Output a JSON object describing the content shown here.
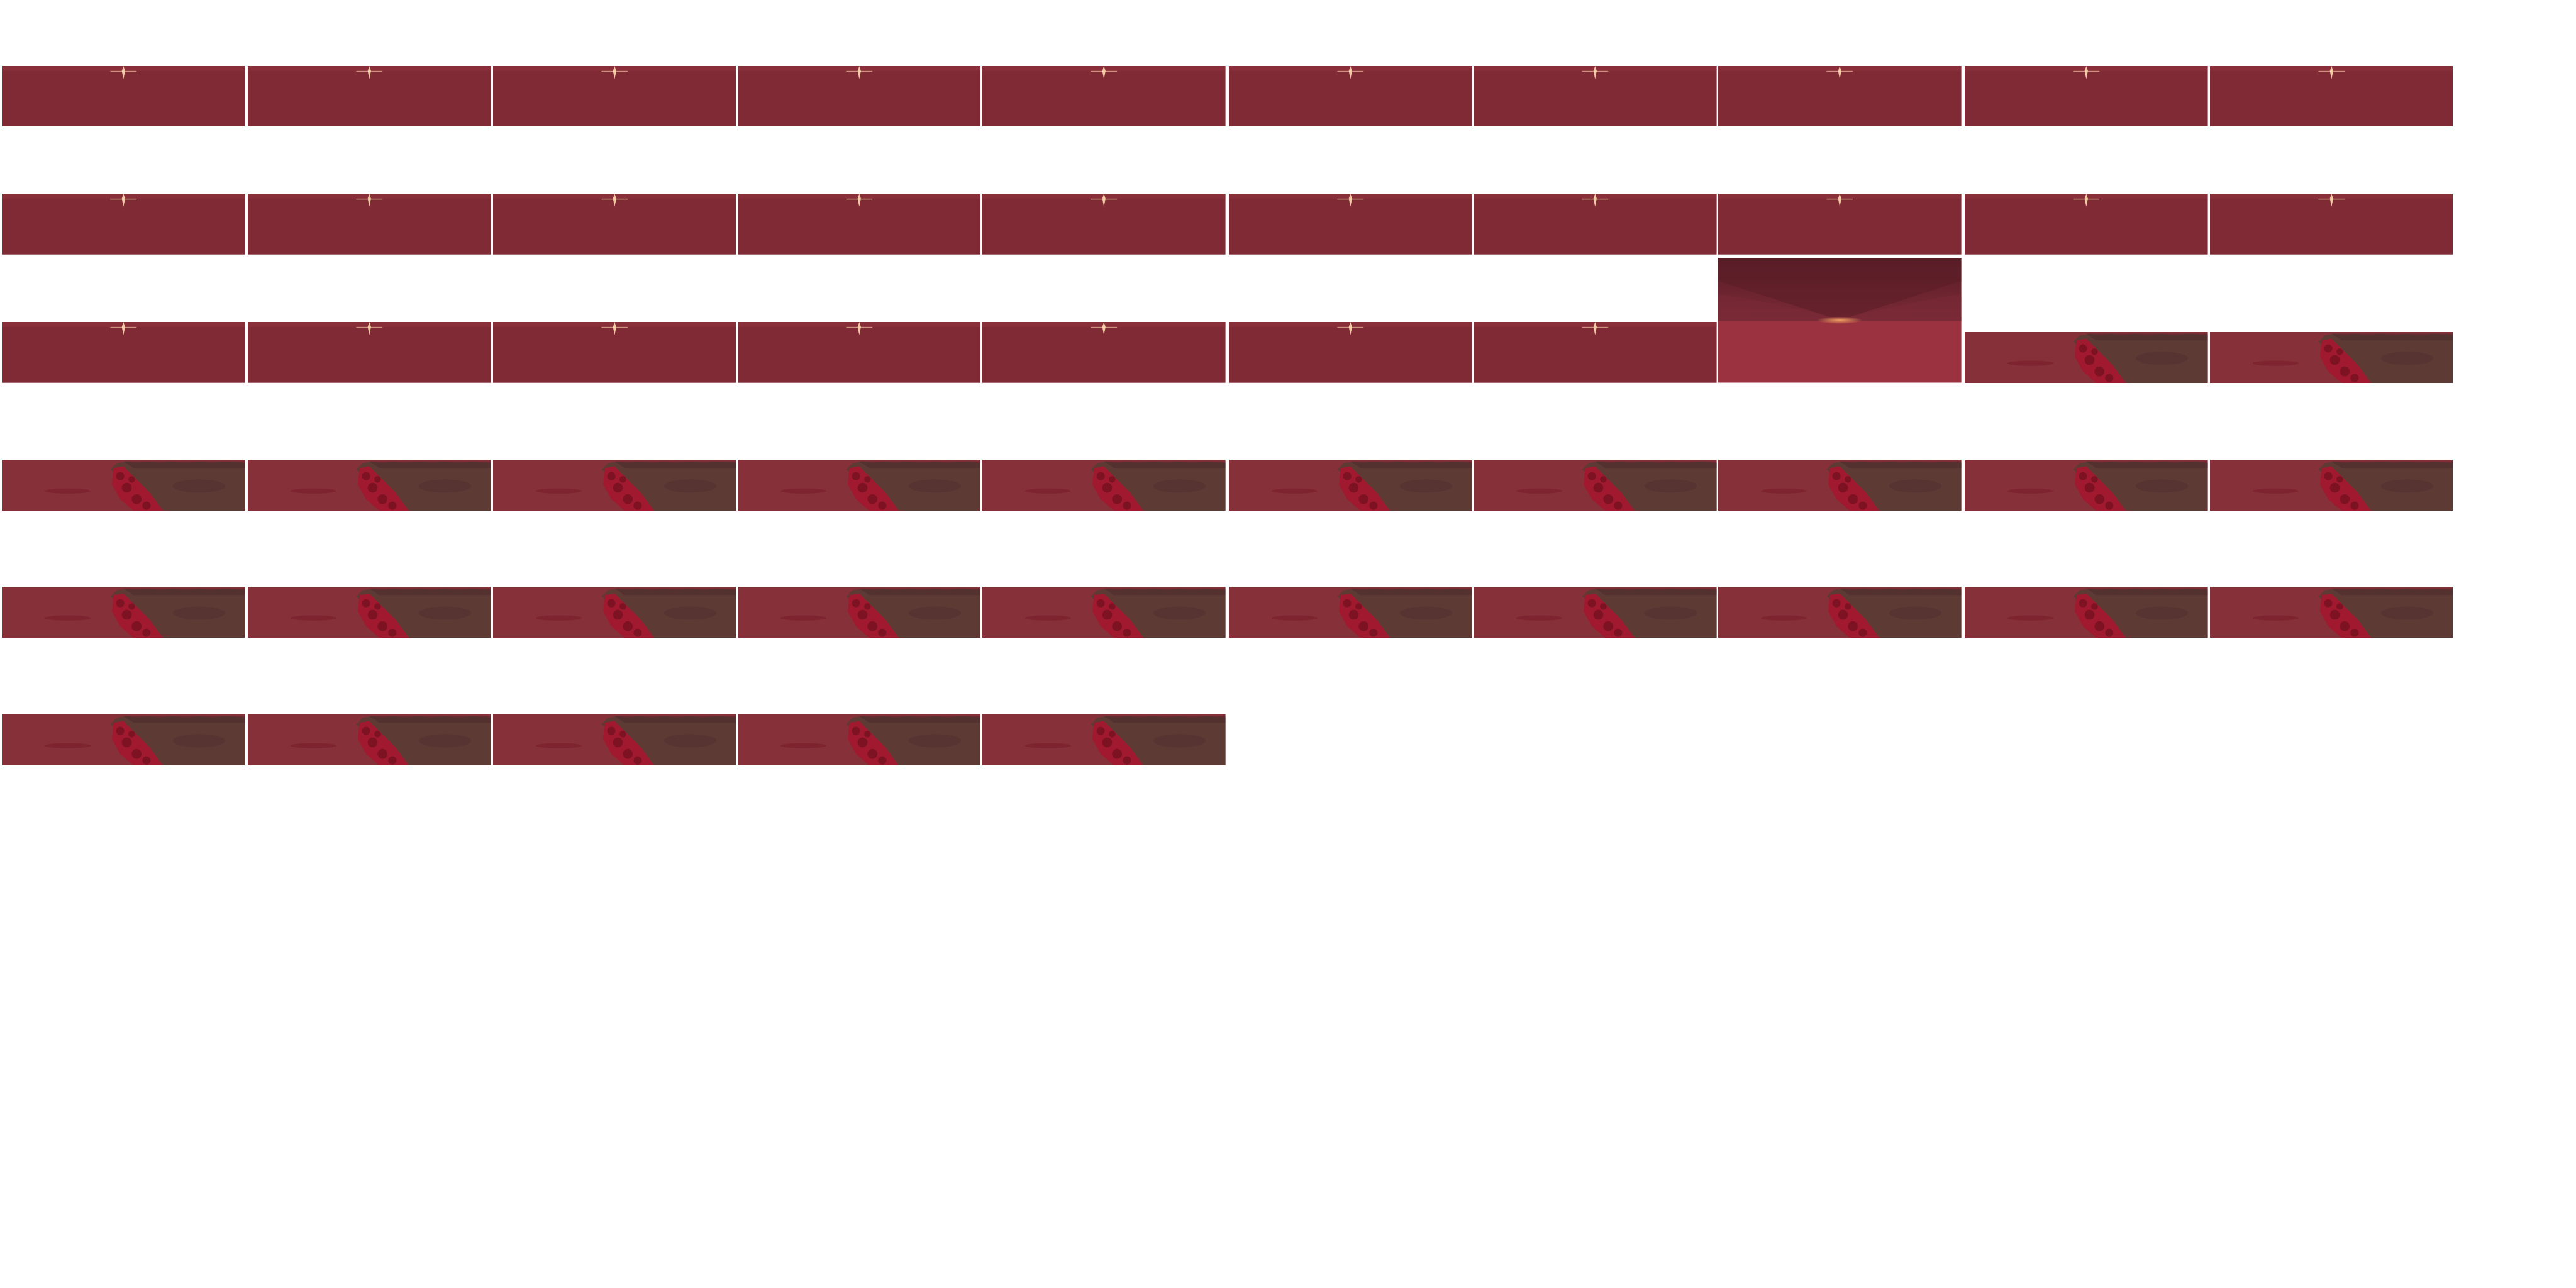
{
  "sheet": {
    "background_color": "#ffffff",
    "columns": 10,
    "frame_count": 55
  },
  "palette": {
    "sky_red": "#7f2a34",
    "sky_red_light": "#8e3440",
    "glow_core": "#ffd9b0",
    "glow_mid": "#e9787a",
    "dusk_dark": "#5a1d27",
    "dusk_mid": "#7a2a36",
    "floor_red": "#9a323f",
    "horizon_orange": "#f0a060",
    "ground_brown": "#5e3a35",
    "ground_brown_dark": "#4a2a2a",
    "crimson_rock": "#a0192e",
    "crimson_rock_dark": "#6d0f1f",
    "field_red": "#86303a"
  },
  "frames": [
    {
      "kind": "sunset-sky"
    },
    {
      "kind": "sunset-sky"
    },
    {
      "kind": "sunset-sky"
    },
    {
      "kind": "sunset-sky"
    },
    {
      "kind": "sunset-sky"
    },
    {
      "kind": "sunset-sky"
    },
    {
      "kind": "sunset-sky"
    },
    {
      "kind": "sunset-sky"
    },
    {
      "kind": "sunset-sky"
    },
    {
      "kind": "sunset-sky"
    },
    {
      "kind": "sunset-sky"
    },
    {
      "kind": "sunset-sky"
    },
    {
      "kind": "sunset-sky"
    },
    {
      "kind": "sunset-sky"
    },
    {
      "kind": "sunset-sky"
    },
    {
      "kind": "sunset-sky"
    },
    {
      "kind": "sunset-sky"
    },
    {
      "kind": "sunset-sky"
    },
    {
      "kind": "sunset-sky"
    },
    {
      "kind": "sunset-sky"
    },
    {
      "kind": "sunset-sky"
    },
    {
      "kind": "sunset-sky"
    },
    {
      "kind": "sunset-sky"
    },
    {
      "kind": "sunset-sky"
    },
    {
      "kind": "sunset-sky"
    },
    {
      "kind": "sunset-sky"
    },
    {
      "kind": "sunset-sky"
    },
    {
      "kind": "dusk-horizon"
    },
    {
      "kind": "crimson-ridge"
    },
    {
      "kind": "crimson-ridge"
    },
    {
      "kind": "crimson-ridge"
    },
    {
      "kind": "crimson-ridge"
    },
    {
      "kind": "crimson-ridge"
    },
    {
      "kind": "crimson-ridge"
    },
    {
      "kind": "crimson-ridge"
    },
    {
      "kind": "crimson-ridge"
    },
    {
      "kind": "crimson-ridge"
    },
    {
      "kind": "crimson-ridge"
    },
    {
      "kind": "crimson-ridge"
    },
    {
      "kind": "crimson-ridge"
    },
    {
      "kind": "crimson-ridge"
    },
    {
      "kind": "crimson-ridge"
    },
    {
      "kind": "crimson-ridge"
    },
    {
      "kind": "crimson-ridge"
    },
    {
      "kind": "crimson-ridge"
    },
    {
      "kind": "crimson-ridge"
    },
    {
      "kind": "crimson-ridge"
    },
    {
      "kind": "crimson-ridge"
    },
    {
      "kind": "crimson-ridge"
    },
    {
      "kind": "crimson-ridge"
    },
    {
      "kind": "crimson-ridge"
    },
    {
      "kind": "crimson-ridge"
    },
    {
      "kind": "crimson-ridge"
    },
    {
      "kind": "crimson-ridge"
    },
    {
      "kind": "crimson-ridge"
    }
  ]
}
